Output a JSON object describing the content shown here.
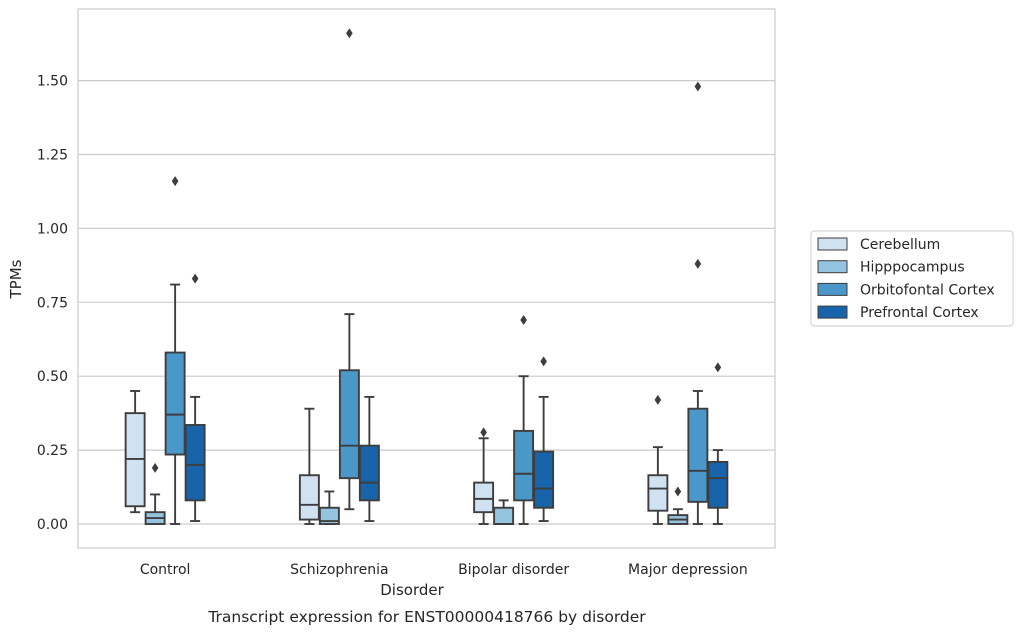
{
  "chart_data": {
    "type": "boxplot",
    "caption": "Transcript expression for ENST00000418766 by disorder",
    "xlabel": "Disorder",
    "ylabel": "TPMs",
    "ylim": [
      -0.08,
      1.75
    ],
    "yticks": [
      0.0,
      0.25,
      0.5,
      0.75,
      1.0,
      1.25,
      1.5
    ],
    "ytick_labels": [
      "0.00",
      "0.25",
      "0.50",
      "0.75",
      "1.00",
      "1.25",
      "1.50"
    ],
    "categories": [
      "Control",
      "Schizophrenia",
      "Bipolar disorder",
      "Major depression"
    ],
    "grid": "horizontal",
    "legend_position": "right",
    "series": [
      {
        "name": "Cerebellum",
        "color": "#d0e1f2",
        "boxes": [
          {
            "whislo": 0.04,
            "q1": 0.06,
            "med": 0.22,
            "q3": 0.375,
            "whishi": 0.45,
            "fliers": []
          },
          {
            "whislo": 0.0,
            "q1": 0.015,
            "med": 0.065,
            "q3": 0.165,
            "whishi": 0.39,
            "fliers": []
          },
          {
            "whislo": 0.0,
            "q1": 0.04,
            "med": 0.085,
            "q3": 0.14,
            "whishi": 0.29,
            "fliers": [
              0.31
            ]
          },
          {
            "whislo": 0.0,
            "q1": 0.045,
            "med": 0.12,
            "q3": 0.165,
            "whishi": 0.26,
            "fliers": [
              0.42
            ]
          }
        ]
      },
      {
        "name": "Hipppocampus",
        "color": "#94c4df",
        "boxes": [
          {
            "whislo": 0.0,
            "q1": 0.0,
            "med": 0.02,
            "q3": 0.04,
            "whishi": 0.1,
            "fliers": [
              0.19
            ]
          },
          {
            "whislo": 0.0,
            "q1": 0.0,
            "med": 0.01,
            "q3": 0.055,
            "whishi": 0.11,
            "fliers": []
          },
          {
            "whislo": 0.0,
            "q1": 0.0,
            "med": 0.0,
            "q3": 0.055,
            "whishi": 0.08,
            "fliers": []
          },
          {
            "whislo": 0.0,
            "q1": 0.0,
            "med": 0.015,
            "q3": 0.03,
            "whishi": 0.05,
            "fliers": [
              0.11
            ]
          }
        ]
      },
      {
        "name": "Orbitofontal Cortex",
        "color": "#4a98c9",
        "boxes": [
          {
            "whislo": 0.0,
            "q1": 0.235,
            "med": 0.37,
            "q3": 0.58,
            "whishi": 0.81,
            "fliers": [
              1.16
            ]
          },
          {
            "whislo": 0.05,
            "q1": 0.155,
            "med": 0.265,
            "q3": 0.52,
            "whishi": 0.71,
            "fliers": [
              1.66
            ]
          },
          {
            "whislo": 0.0,
            "q1": 0.08,
            "med": 0.17,
            "q3": 0.315,
            "whishi": 0.5,
            "fliers": [
              0.69
            ]
          },
          {
            "whislo": 0.0,
            "q1": 0.075,
            "med": 0.18,
            "q3": 0.39,
            "whishi": 0.45,
            "fliers": [
              0.88,
              1.48
            ]
          }
        ]
      },
      {
        "name": "Prefrontal Cortex",
        "color": "#1764ab",
        "boxes": [
          {
            "whislo": 0.01,
            "q1": 0.08,
            "med": 0.2,
            "q3": 0.335,
            "whishi": 0.43,
            "fliers": [
              0.83
            ]
          },
          {
            "whislo": 0.01,
            "q1": 0.08,
            "med": 0.14,
            "q3": 0.265,
            "whishi": 0.43,
            "fliers": []
          },
          {
            "whislo": 0.01,
            "q1": 0.055,
            "med": 0.12,
            "q3": 0.245,
            "whishi": 0.43,
            "fliers": [
              0.55
            ]
          },
          {
            "whislo": 0.0,
            "q1": 0.055,
            "med": 0.155,
            "q3": 0.21,
            "whishi": 0.25,
            "fliers": [
              0.53
            ]
          }
        ]
      }
    ]
  }
}
